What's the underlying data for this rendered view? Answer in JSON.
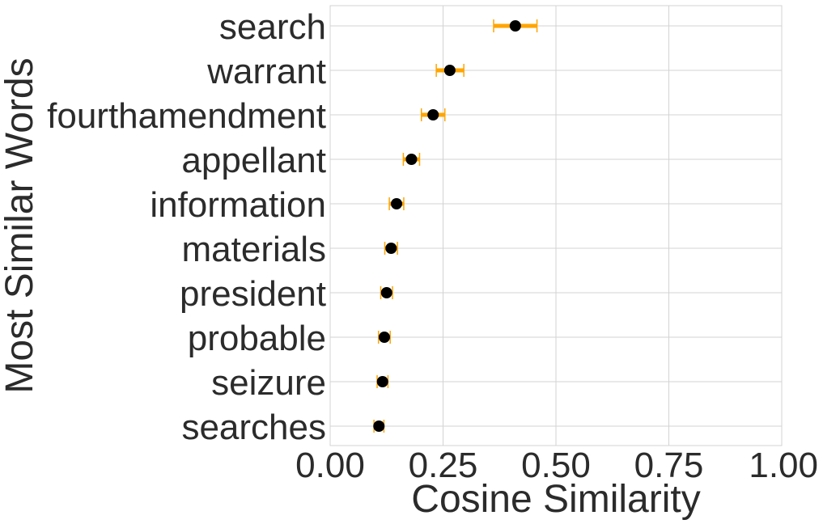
{
  "chart_data": {
    "type": "scatter",
    "orientation": "horizontal",
    "categories": [
      "search",
      "warrant",
      "fourthamendment",
      "appellant",
      "information",
      "materials",
      "president",
      "probable",
      "seizure",
      "searches"
    ],
    "values": [
      0.41,
      0.265,
      0.228,
      0.18,
      0.147,
      0.135,
      0.125,
      0.12,
      0.116,
      0.108
    ],
    "error_low": [
      0.362,
      0.235,
      0.202,
      0.162,
      0.131,
      0.121,
      0.112,
      0.107,
      0.104,
      0.097
    ],
    "error_high": [
      0.458,
      0.296,
      0.254,
      0.198,
      0.163,
      0.149,
      0.138,
      0.133,
      0.128,
      0.119
    ],
    "xlabel": "Cosine Similarity",
    "ylabel": "Most Similar Words",
    "xlim": [
      0,
      1
    ],
    "xticks": [
      "0.00",
      "0.25",
      "0.50",
      "0.75",
      "1.00"
    ],
    "xtick_values": [
      0,
      0.25,
      0.5,
      0.75,
      1.0
    ],
    "grid": true,
    "marker_color": "#000000",
    "errorbar_color": "#ffa500",
    "grid_color": "#d3d3d3",
    "text_color": "#2b2b2b"
  }
}
